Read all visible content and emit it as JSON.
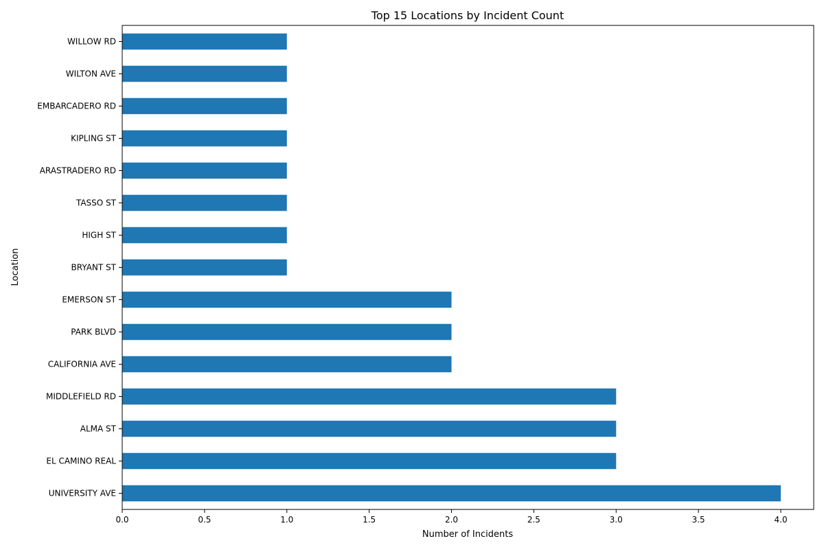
{
  "chart_data": {
    "type": "bar",
    "orientation": "horizontal",
    "title": "Top 15 Locations by Incident Count",
    "xlabel": "Number of Incidents",
    "ylabel": "Location",
    "xlim": [
      0,
      4.2
    ],
    "xticks": [
      0,
      0.5,
      1,
      1.5,
      2,
      2.5,
      3,
      3.5,
      4
    ],
    "xtick_labels": [
      "0.0",
      "0.5",
      "1.0",
      "1.5",
      "2.0",
      "2.5",
      "3.0",
      "3.5",
      "4.0"
    ],
    "categories": [
      "UNIVERSITY AVE",
      "EL CAMINO REAL",
      "ALMA ST",
      "MIDDLEFIELD RD",
      "CALIFORNIA AVE",
      "PARK BLVD",
      "EMERSON ST",
      "BRYANT ST",
      "HIGH ST",
      "TASSO ST",
      "ARASTRADERO RD",
      "KIPLING ST",
      "EMBARCADERO RD",
      "WILTON AVE",
      "WILLOW RD"
    ],
    "values": [
      4,
      3,
      3,
      3,
      2,
      2,
      2,
      1,
      1,
      1,
      1,
      1,
      1,
      1,
      1
    ],
    "bar_color": "#1f77b4",
    "grid": false,
    "legend": "none"
  }
}
